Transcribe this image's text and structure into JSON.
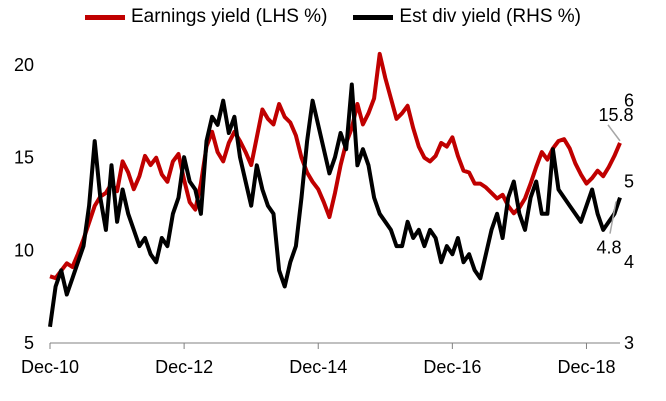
{
  "colors": {
    "earnings": "#c00000",
    "dividend": "#000000",
    "axis": "#808080",
    "callout": "#a6a6a6"
  },
  "chart_data": {
    "type": "line",
    "title": "",
    "legend_position": "top",
    "grid": false,
    "x_ticks": [
      "Dec-10",
      "Dec-12",
      "Dec-14",
      "Dec-16",
      "Dec-18"
    ],
    "x_range": [
      "2010-12",
      "2019-06"
    ],
    "y_left": {
      "range": [
        5,
        22
      ],
      "ticks": [
        "5",
        "10",
        "15",
        "20"
      ]
    },
    "y_right": {
      "range": [
        3,
        6.9
      ],
      "ticks": [
        "3",
        "4",
        "5",
        "6"
      ]
    },
    "annotations": {
      "earnings_last": "15.8",
      "dividend_last": "4.8"
    },
    "series": [
      {
        "name": "Earnings yield (LHS %)",
        "axis": "left",
        "x": [
          "2010-12",
          "2011-01",
          "2011-02",
          "2011-03",
          "2011-04",
          "2011-05",
          "2011-06",
          "2011-07",
          "2011-08",
          "2011-09",
          "2011-10",
          "2011-11",
          "2011-12",
          "2012-01",
          "2012-02",
          "2012-03",
          "2012-04",
          "2012-05",
          "2012-06",
          "2012-07",
          "2012-08",
          "2012-09",
          "2012-10",
          "2012-11",
          "2012-12",
          "2013-01",
          "2013-02",
          "2013-03",
          "2013-04",
          "2013-05",
          "2013-06",
          "2013-07",
          "2013-08",
          "2013-09",
          "2013-10",
          "2013-11",
          "2013-12",
          "2014-01",
          "2014-02",
          "2014-03",
          "2014-04",
          "2014-05",
          "2014-06",
          "2014-07",
          "2014-08",
          "2014-09",
          "2014-10",
          "2014-11",
          "2014-12",
          "2015-01",
          "2015-02",
          "2015-03",
          "2015-04",
          "2015-05",
          "2015-06",
          "2015-07",
          "2015-08",
          "2015-09",
          "2015-10",
          "2015-11",
          "2015-12",
          "2016-01",
          "2016-02",
          "2016-03",
          "2016-04",
          "2016-05",
          "2016-06",
          "2016-07",
          "2016-08",
          "2016-09",
          "2016-10",
          "2016-11",
          "2016-12",
          "2017-01",
          "2017-02",
          "2017-03",
          "2017-04",
          "2017-05",
          "2017-06",
          "2017-07",
          "2017-08",
          "2017-09",
          "2017-10",
          "2017-11",
          "2017-12",
          "2018-01",
          "2018-02",
          "2018-03",
          "2018-04",
          "2018-05",
          "2018-06",
          "2018-07",
          "2018-08",
          "2018-09",
          "2018-10",
          "2018-11",
          "2018-12",
          "2019-01",
          "2019-02",
          "2019-03",
          "2019-04",
          "2019-05",
          "2019-06"
        ],
        "y": [
          8.6,
          8.5,
          8.9,
          9.3,
          9.1,
          9.8,
          10.6,
          11.5,
          12.4,
          12.9,
          13.1,
          13.6,
          13.2,
          14.8,
          14.2,
          13.3,
          14.0,
          15.1,
          14.6,
          15.0,
          14.1,
          13.7,
          14.8,
          15.2,
          13.8,
          12.6,
          12.2,
          13.6,
          15.6,
          16.4,
          15.3,
          14.8,
          15.8,
          16.4,
          15.9,
          15.3,
          14.6,
          16.1,
          17.6,
          17.1,
          16.8,
          17.9,
          17.2,
          16.9,
          16.2,
          15.0,
          14.2,
          13.7,
          13.3,
          12.6,
          11.8,
          13.1,
          14.6,
          15.8,
          16.6,
          17.9,
          16.8,
          17.4,
          18.2,
          20.6,
          19.3,
          18.2,
          17.1,
          17.4,
          17.8,
          16.6,
          15.6,
          15.0,
          14.8,
          15.1,
          15.8,
          15.6,
          16.1,
          15.1,
          14.3,
          14.2,
          13.6,
          13.6,
          13.4,
          13.1,
          12.8,
          13.0,
          12.4,
          12.0,
          12.3,
          12.8,
          13.6,
          14.5,
          15.3,
          14.9,
          15.5,
          15.9,
          16.0,
          15.5,
          14.7,
          14.1,
          13.6,
          13.9,
          14.3,
          14.0,
          14.5,
          15.1,
          15.8
        ]
      },
      {
        "name": "Est div yield (RHS %)",
        "axis": "right",
        "x": [
          "2010-12",
          "2011-01",
          "2011-02",
          "2011-03",
          "2011-04",
          "2011-05",
          "2011-06",
          "2011-07",
          "2011-08",
          "2011-09",
          "2011-10",
          "2011-11",
          "2011-12",
          "2012-01",
          "2012-02",
          "2012-03",
          "2012-04",
          "2012-05",
          "2012-06",
          "2012-07",
          "2012-08",
          "2012-09",
          "2012-10",
          "2012-11",
          "2012-12",
          "2013-01",
          "2013-02",
          "2013-03",
          "2013-04",
          "2013-05",
          "2013-06",
          "2013-07",
          "2013-08",
          "2013-09",
          "2013-10",
          "2013-11",
          "2013-12",
          "2014-01",
          "2014-02",
          "2014-03",
          "2014-04",
          "2014-05",
          "2014-06",
          "2014-07",
          "2014-08",
          "2014-09",
          "2014-10",
          "2014-11",
          "2014-12",
          "2015-01",
          "2015-02",
          "2015-03",
          "2015-04",
          "2015-05",
          "2015-06",
          "2015-07",
          "2015-08",
          "2015-09",
          "2015-10",
          "2015-11",
          "2015-12",
          "2016-01",
          "2016-02",
          "2016-03",
          "2016-04",
          "2016-05",
          "2016-06",
          "2016-07",
          "2016-08",
          "2016-09",
          "2016-10",
          "2016-11",
          "2016-12",
          "2017-01",
          "2017-02",
          "2017-03",
          "2017-04",
          "2017-05",
          "2017-06",
          "2017-07",
          "2017-08",
          "2017-09",
          "2017-10",
          "2017-11",
          "2017-12",
          "2018-01",
          "2018-02",
          "2018-03",
          "2018-04",
          "2018-05",
          "2018-06",
          "2018-07",
          "2018-08",
          "2018-09",
          "2018-10",
          "2018-11",
          "2018-12",
          "2019-01",
          "2019-02",
          "2019-03",
          "2019-04",
          "2019-05",
          "2019-06"
        ],
        "y": [
          3.2,
          3.7,
          3.9,
          3.6,
          3.8,
          4.0,
          4.2,
          4.7,
          5.5,
          4.8,
          4.4,
          5.2,
          4.5,
          4.9,
          4.6,
          4.4,
          4.2,
          4.3,
          4.1,
          4.0,
          4.3,
          4.2,
          4.6,
          4.8,
          5.3,
          5.0,
          4.9,
          4.6,
          5.5,
          5.8,
          5.7,
          6.0,
          5.6,
          5.8,
          5.3,
          5.0,
          4.7,
          5.2,
          4.9,
          4.7,
          4.6,
          3.9,
          3.7,
          4.0,
          4.2,
          4.8,
          5.5,
          6.0,
          5.7,
          5.4,
          5.1,
          5.3,
          5.6,
          5.4,
          6.2,
          5.2,
          5.4,
          5.2,
          4.8,
          4.6,
          4.5,
          4.4,
          4.2,
          4.2,
          4.5,
          4.3,
          4.4,
          4.2,
          4.4,
          4.3,
          4.0,
          4.2,
          4.1,
          4.3,
          4.0,
          4.1,
          3.9,
          3.8,
          4.1,
          4.4,
          4.6,
          4.3,
          4.8,
          5.0,
          4.6,
          4.4,
          4.8,
          5.0,
          4.6,
          4.6,
          5.4,
          4.9,
          4.8,
          4.7,
          4.6,
          4.5,
          4.7,
          4.9,
          4.6,
          4.4,
          4.5,
          4.6,
          4.8
        ]
      }
    ]
  }
}
